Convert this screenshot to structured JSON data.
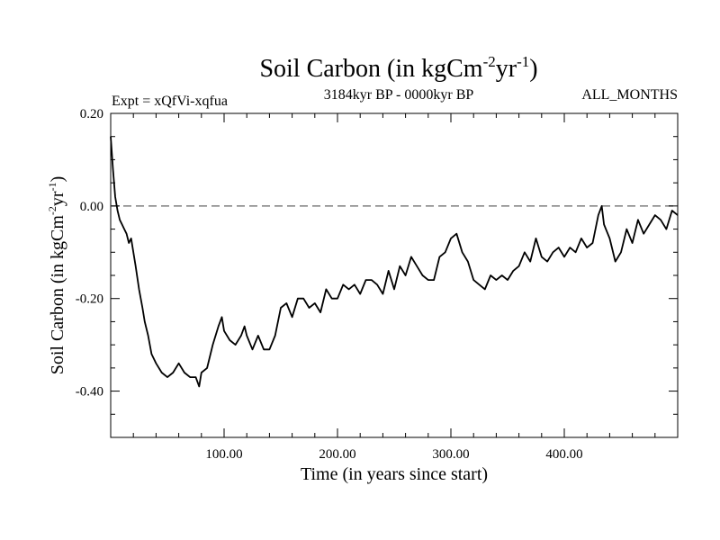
{
  "chart_data": {
    "type": "line",
    "title_main": "Soil Carbon (in kgCm",
    "title_sup1": "-2",
    "title_mid": "yr",
    "title_sup2": "-1",
    "title_end": ")",
    "subtitle_left": "Expt = xQfVi-xqfua",
    "subtitle_center": "3184kyr BP - 0000kyr BP",
    "subtitle_right": "ALL_MONTHS",
    "ylabel_main": "Soil Carbon (in kgCm",
    "ylabel_sup1": "-2",
    "ylabel_mid": "yr",
    "ylabel_sup2": "-1",
    "ylabel_end": ")",
    "xlabel": "Time (in years since start)",
    "xlim": [
      0,
      500
    ],
    "ylim": [
      -0.5,
      0.2
    ],
    "xticks": [
      100,
      200,
      300,
      400
    ],
    "xtick_labels": [
      "100.00",
      "200.00",
      "300.00",
      "400.00"
    ],
    "yticks": [
      0.2,
      0.0,
      -0.2,
      -0.4
    ],
    "ytick_labels": [
      "0.20",
      "0.00",
      "-0.20",
      "-0.40"
    ],
    "reference_line": {
      "y": 0.0,
      "style": "dashed",
      "color": "#808080"
    },
    "series": [
      {
        "name": "Soil Carbon",
        "color": "#000000",
        "x": [
          0,
          2,
          4,
          6,
          8,
          10,
          12,
          14,
          16,
          18,
          20,
          22,
          25,
          28,
          30,
          33,
          36,
          40,
          45,
          50,
          55,
          60,
          65,
          70,
          75,
          78,
          80,
          85,
          90,
          95,
          98,
          100,
          105,
          110,
          115,
          118,
          120,
          125,
          130,
          135,
          140,
          145,
          150,
          155,
          160,
          165,
          170,
          175,
          180,
          185,
          190,
          195,
          200,
          205,
          210,
          215,
          220,
          225,
          230,
          235,
          240,
          245,
          250,
          255,
          260,
          265,
          270,
          275,
          280,
          285,
          290,
          295,
          300,
          305,
          310,
          315,
          320,
          325,
          330,
          335,
          340,
          345,
          350,
          355,
          360,
          365,
          370,
          375,
          380,
          385,
          390,
          395,
          400,
          405,
          410,
          415,
          420,
          425,
          430,
          433,
          435,
          440,
          445,
          450,
          455,
          460,
          465,
          470,
          475,
          480,
          485,
          490,
          495,
          500
        ],
        "y": [
          0.15,
          0.08,
          0.02,
          -0.01,
          -0.03,
          -0.04,
          -0.05,
          -0.06,
          -0.08,
          -0.07,
          -0.1,
          -0.13,
          -0.18,
          -0.22,
          -0.25,
          -0.28,
          -0.32,
          -0.34,
          -0.36,
          -0.37,
          -0.36,
          -0.34,
          -0.36,
          -0.37,
          -0.37,
          -0.39,
          -0.36,
          -0.35,
          -0.3,
          -0.26,
          -0.24,
          -0.27,
          -0.29,
          -0.3,
          -0.28,
          -0.26,
          -0.28,
          -0.31,
          -0.28,
          -0.31,
          -0.31,
          -0.28,
          -0.22,
          -0.21,
          -0.24,
          -0.2,
          -0.2,
          -0.22,
          -0.21,
          -0.23,
          -0.18,
          -0.2,
          -0.2,
          -0.17,
          -0.18,
          -0.17,
          -0.19,
          -0.16,
          -0.16,
          -0.17,
          -0.19,
          -0.14,
          -0.18,
          -0.13,
          -0.15,
          -0.11,
          -0.13,
          -0.15,
          -0.16,
          -0.16,
          -0.11,
          -0.1,
          -0.07,
          -0.06,
          -0.1,
          -0.12,
          -0.16,
          -0.17,
          -0.18,
          -0.15,
          -0.16,
          -0.15,
          -0.16,
          -0.14,
          -0.13,
          -0.1,
          -0.12,
          -0.07,
          -0.11,
          -0.12,
          -0.1,
          -0.09,
          -0.11,
          -0.09,
          -0.1,
          -0.07,
          -0.09,
          -0.08,
          -0.02,
          0.0,
          -0.04,
          -0.07,
          -0.12,
          -0.1,
          -0.05,
          -0.08,
          -0.03,
          -0.06,
          -0.04,
          -0.02,
          -0.03,
          -0.05,
          -0.01,
          -0.02
        ]
      }
    ]
  }
}
